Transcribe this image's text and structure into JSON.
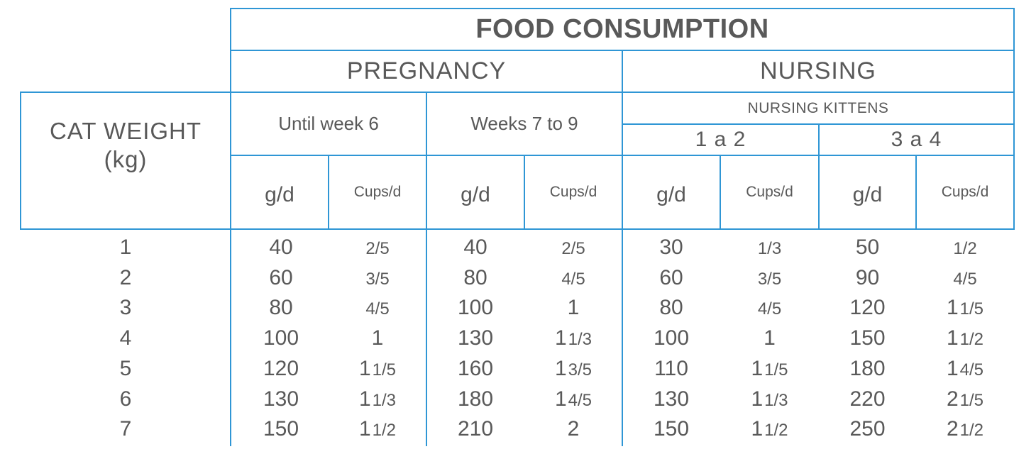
{
  "header": {
    "title": "FOOD CONSUMPTION",
    "pregnancy": "PREGNANCY",
    "nursing": "NURSING",
    "nursing_kittens": "NURSING KITTENS",
    "until_week_6": "Until week 6",
    "weeks_7_to_9": "Weeks 7 to 9",
    "kittens_1_2": "1 a 2",
    "kittens_3_4": "3 a 4",
    "cat_weight_line1": "CAT WEIGHT",
    "cat_weight_line2": "(kg)",
    "unit_gd": "g/d",
    "unit_cups": "Cups/d"
  },
  "rows": [
    {
      "weight": "1",
      "p1_g": "40",
      "p1_c": "2/5",
      "p2_g": "40",
      "p2_c": "2/5",
      "n1_g": "30",
      "n1_c": "1/3",
      "n2_g": "50",
      "n2_c": "1/2"
    },
    {
      "weight": "2",
      "p1_g": "60",
      "p1_c": "3/5",
      "p2_g": "80",
      "p2_c": "4/5",
      "n1_g": "60",
      "n1_c": "3/5",
      "n2_g": "90",
      "n2_c": "4/5"
    },
    {
      "weight": "3",
      "p1_g": "80",
      "p1_c": "4/5",
      "p2_g": "100",
      "p2_c": "1",
      "n1_g": "80",
      "n1_c": "4/5",
      "n2_g": "120",
      "n2_c": "1 1/5"
    },
    {
      "weight": "4",
      "p1_g": "100",
      "p1_c": "1",
      "p2_g": "130",
      "p2_c": "1 1/3",
      "n1_g": "100",
      "n1_c": "1",
      "n2_g": "150",
      "n2_c": "1 1/2"
    },
    {
      "weight": "5",
      "p1_g": "120",
      "p1_c": "1 1/5",
      "p2_g": "160",
      "p2_c": "1 3/5",
      "n1_g": "110",
      "n1_c": "1 1/5",
      "n2_g": "180",
      "n2_c": "1 4/5"
    },
    {
      "weight": "6",
      "p1_g": "130",
      "p1_c": "1 1/3",
      "p2_g": "180",
      "p2_c": "1 4/5",
      "n1_g": "130",
      "n1_c": "1 1/3",
      "n2_g": "220",
      "n2_c": "2 1/5"
    },
    {
      "weight": "7",
      "p1_g": "150",
      "p1_c": "1 1/2",
      "p2_g": "210",
      "p2_c": "2",
      "n1_g": "150",
      "n1_c": "1 1/2",
      "n2_g": "250",
      "n2_c": "2 1/2"
    }
  ]
}
